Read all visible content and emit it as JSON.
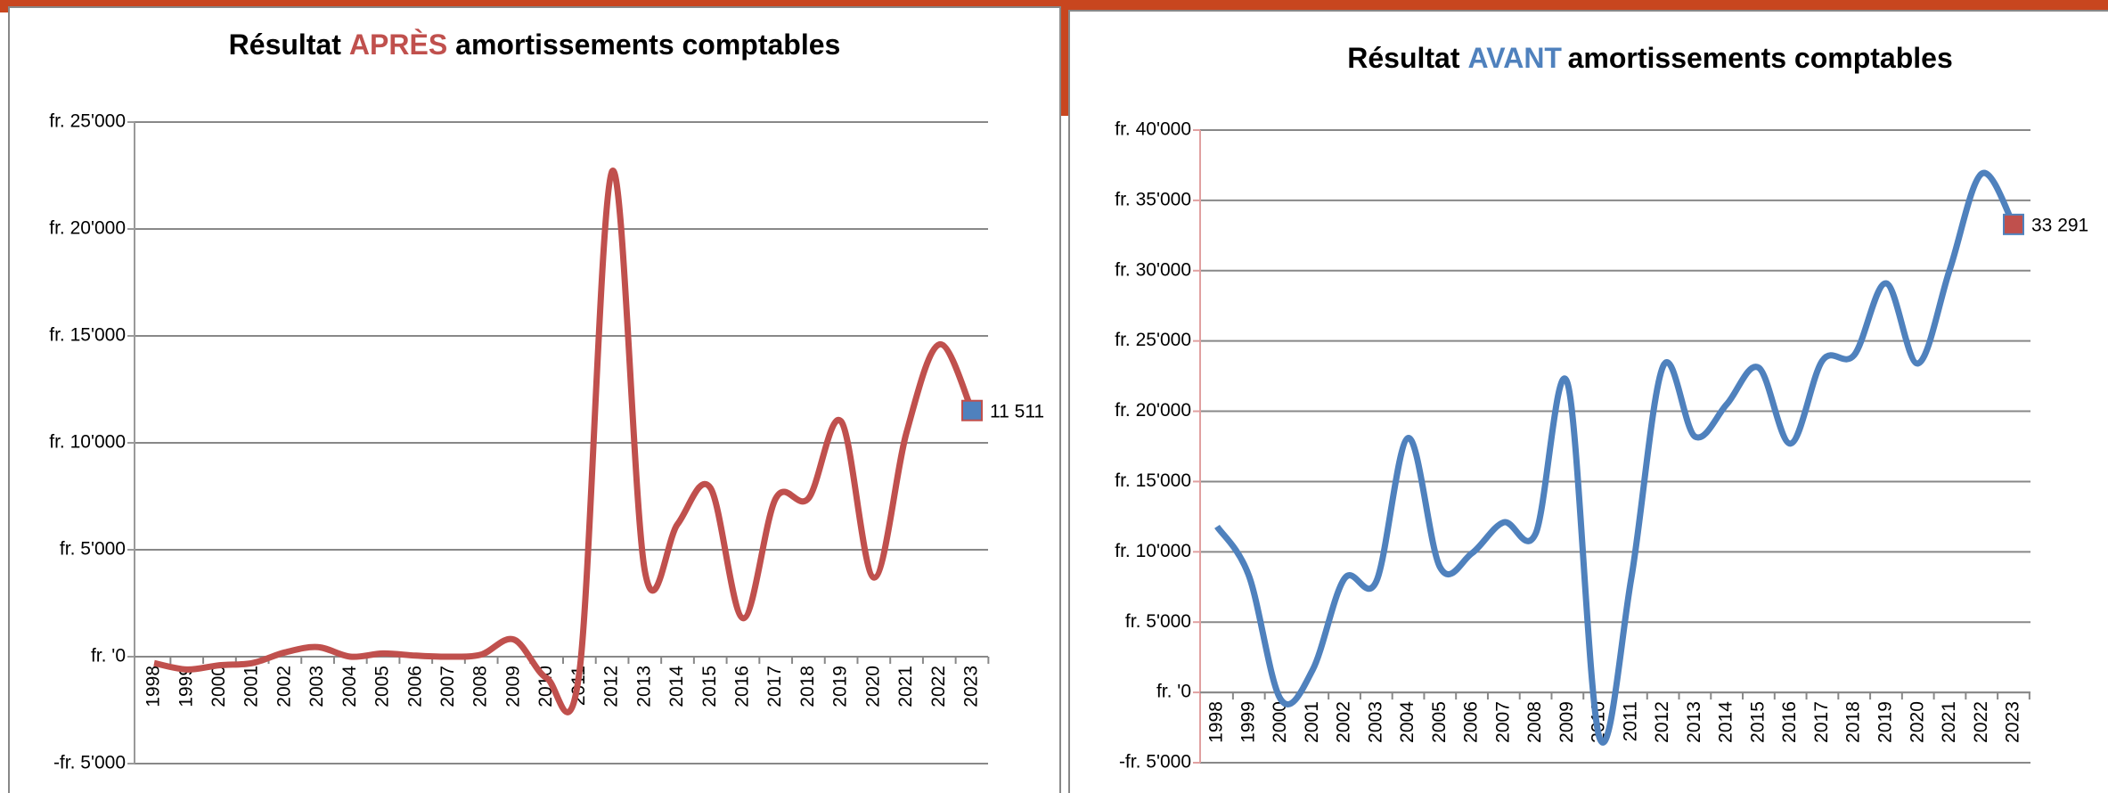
{
  "chart_data": [
    {
      "type": "line",
      "title_parts": [
        "Résultat",
        "APRÈS",
        "amortissements comptables"
      ],
      "title_color": "#c0504d",
      "categories": [
        "1998",
        "1999",
        "2000",
        "2001",
        "2002",
        "2003",
        "2004",
        "2005",
        "2006",
        "2007",
        "2008",
        "2009",
        "2010",
        "2011",
        "2012",
        "2013",
        "2014",
        "2015",
        "2016",
        "2017",
        "2018",
        "2019",
        "2020",
        "2021",
        "2022",
        "2023"
      ],
      "series": [
        {
          "color": "#c0504d",
          "marker_color": "#4f81bd",
          "values": [
            -300,
            -600,
            -400,
            -300,
            200,
            450,
            0,
            150,
            50,
            0,
            100,
            800,
            -1000,
            -700,
            22700,
            4000,
            6200,
            7900,
            1800,
            7400,
            7400,
            11000,
            3700,
            10500,
            14600,
            11511
          ],
          "value_labels": [
            null,
            null,
            null,
            null,
            null,
            null,
            null,
            null,
            null,
            null,
            null,
            null,
            null,
            null,
            null,
            null,
            null,
            null,
            null,
            null,
            null,
            null,
            null,
            null,
            null,
            "11 511"
          ]
        }
      ],
      "ylim": [
        -5000,
        25000
      ],
      "yticks": [
        {
          "value": -5000,
          "label": "-fr. 5'000"
        },
        {
          "value": 0,
          "label": "fr. '0"
        },
        {
          "value": 5000,
          "label": "fr. 5'000"
        },
        {
          "value": 10000,
          "label": "fr. 10'000"
        },
        {
          "value": 15000,
          "label": "fr. 15'000"
        },
        {
          "value": 20000,
          "label": "fr. 20'000"
        },
        {
          "value": 25000,
          "label": "fr. 25'000"
        }
      ],
      "grid": true
    },
    {
      "type": "line",
      "title_parts": [
        "Résultat",
        "AVANT",
        "amortissements comptables"
      ],
      "title_color": "#4f81bd",
      "categories": [
        "1998",
        "1999",
        "2000",
        "2001",
        "2002",
        "2003",
        "2004",
        "2005",
        "2006",
        "2007",
        "2008",
        "2009",
        "2010",
        "2011",
        "2012",
        "2013",
        "2014",
        "2015",
        "2016",
        "2017",
        "2018",
        "2019",
        "2020",
        "2021",
        "2022",
        "2023"
      ],
      "series": [
        {
          "color": "#4f81bd",
          "marker_color": "#c0504d",
          "values": [
            11800,
            8300,
            -500,
            1600,
            8100,
            7900,
            18100,
            8900,
            9900,
            12100,
            11300,
            22000,
            -3200,
            8100,
            23200,
            18200,
            20500,
            23100,
            17700,
            23600,
            24000,
            29100,
            23400,
            30100,
            36900,
            33291
          ],
          "value_labels": [
            null,
            null,
            null,
            null,
            null,
            null,
            null,
            null,
            null,
            null,
            null,
            null,
            null,
            null,
            null,
            null,
            null,
            null,
            null,
            null,
            null,
            null,
            null,
            null,
            null,
            "33 291"
          ]
        }
      ],
      "ylim": [
        -5000,
        40000
      ],
      "yticks": [
        {
          "value": -5000,
          "label": "-fr. 5'000"
        },
        {
          "value": 0,
          "label": "fr. '0"
        },
        {
          "value": 5000,
          "label": "fr. 5'000"
        },
        {
          "value": 10000,
          "label": "fr. 10'000"
        },
        {
          "value": 15000,
          "label": "fr. 15'000"
        },
        {
          "value": 20000,
          "label": "fr. 20'000"
        },
        {
          "value": 25000,
          "label": "fr. 25'000"
        },
        {
          "value": 30000,
          "label": "fr. 30'000"
        },
        {
          "value": 35000,
          "label": "fr. 35'000"
        },
        {
          "value": 40000,
          "label": "fr. 40'000"
        }
      ],
      "grid": true
    }
  ]
}
